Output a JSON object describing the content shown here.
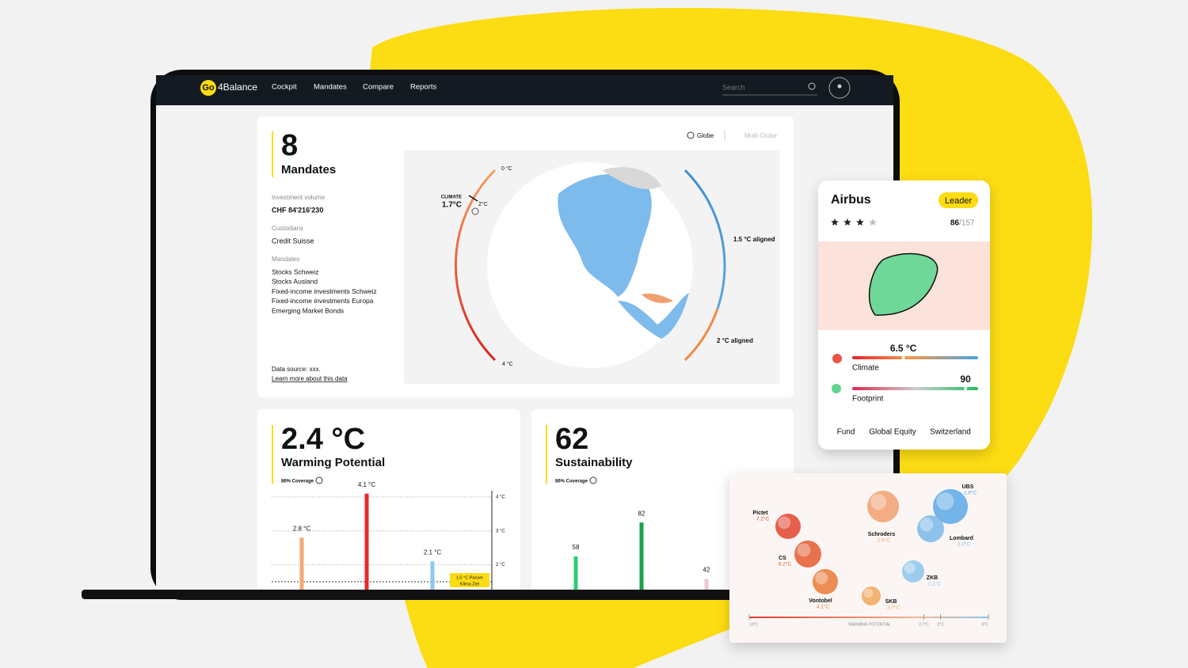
{
  "nav": {
    "logo_go": "Go",
    "logo_rest": "4Balance",
    "links": [
      "Cockpit",
      "Mandates",
      "Compare",
      "Reports"
    ],
    "search": "Search"
  },
  "overview": {
    "count": "8",
    "title": "Mandates",
    "investment_label": "Investment volume",
    "investment": "CHF 84'216'230",
    "custodians_label": "Custodians",
    "custodian": "Credit Suisse",
    "mandates_label": "Mandates",
    "mandates": [
      "Stocks Schweiz",
      "Stocks Ausland",
      "Fixed-income investments Schweiz",
      "Fixed-income investments Europa",
      "Emerging Market Bonds"
    ],
    "source": "Data source: xxx.",
    "learn_more": "Learn more about this data"
  },
  "globe": {
    "views": [
      "Globe",
      "Multi-Globe"
    ],
    "climate_label": "CLIMATE",
    "climate_value": "1.7°C",
    "top": "0 °C",
    "marker": "2°C",
    "bottom": "4 °C",
    "aligned_15": "1.5 °C aligned",
    "aligned_2": "2 °C aligned"
  },
  "warming": {
    "value": "2.4 °C",
    "title": "Warming Potential",
    "coverage": "86% Coverage",
    "chart": {
      "type": "bar",
      "values": [
        2.8,
        4.1,
        2.1
      ],
      "value_labels": [
        "2.8 °C",
        "4.1 °C",
        "2.1 °C"
      ],
      "colors": [
        "#f5a877",
        "#e52b2b",
        "#8cc8ee"
      ],
      "ylim": [
        1.5,
        4
      ],
      "yticks": [
        {
          "value": 4,
          "label": "4 °C"
        },
        {
          "value": 3,
          "label": "3 °C"
        },
        {
          "value": 2,
          "label": "2 °C"
        }
      ],
      "annotation": [
        "1.5 °C Pariser",
        "Klima Ziel"
      ]
    }
  },
  "sustainability": {
    "value": "62",
    "title": "Sustainability",
    "coverage": "86% Coverage",
    "chart": {
      "type": "bar",
      "values": [
        58,
        82,
        42
      ],
      "colors": [
        "#2ecc71",
        "#1aa34a",
        "#ecc9cc"
      ],
      "ylim": [
        30,
        100
      ]
    }
  },
  "airbus": {
    "name": "Airbus",
    "badge": "Leader",
    "rating": 3,
    "rating_max": 4,
    "rank": "86",
    "rank_total": "/157",
    "climate": {
      "label": "Climate",
      "value": 6.5,
      "value_label": "6.5 °C",
      "lim": [
        0,
        16
      ]
    },
    "footprint": {
      "label": "Footprint",
      "value": 90,
      "lim": [
        0,
        100
      ]
    },
    "tags": [
      "Fund",
      "Global Equity",
      "Switzerland"
    ]
  },
  "map": {
    "banks": [
      {
        "name": "Pictet",
        "temp": "7.2°C",
        "color": "#e0452b"
      },
      {
        "name": "Schroders",
        "temp": "2.5°C",
        "color": "#f0a070"
      },
      {
        "name": "UBS",
        "temp": "1.8°C",
        "color": "#5aa8e6"
      },
      {
        "name": "Lombard",
        "temp": "2.0°C",
        "color": "#7ab8e8"
      },
      {
        "name": "CS",
        "temp": "6.2°C",
        "color": "#e45a30"
      },
      {
        "name": "ZKB",
        "temp": "2.1°C",
        "color": "#8cc4ec"
      },
      {
        "name": "Vontobel",
        "temp": "4.1°C",
        "color": "#ea7a3a"
      },
      {
        "name": "SKB",
        "temp": "3.0°C",
        "color": "#f0a85a"
      }
    ],
    "scale": {
      "title": "WARMING POTENTIAL",
      "lim": [
        10,
        0
      ],
      "ticks": [
        {
          "value": 10,
          "label": "10°C"
        },
        {
          "value": 2.7,
          "label": "2.7°C"
        },
        {
          "value": 2,
          "label": "2°C"
        },
        {
          "value": 0,
          "label": "0°C"
        }
      ]
    }
  }
}
